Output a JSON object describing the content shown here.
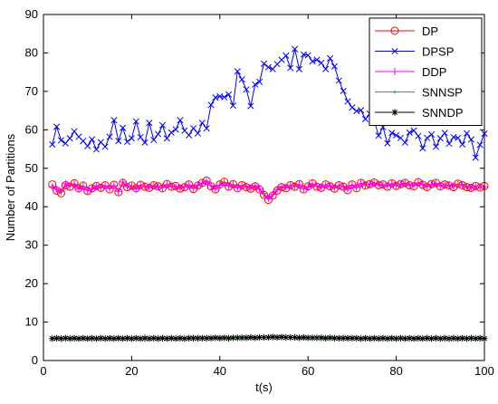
{
  "chart_data": {
    "type": "line",
    "title": "",
    "xlabel": "t(s)",
    "ylabel": "Number of Partitions",
    "xlim": [
      0,
      100
    ],
    "ylim": [
      0,
      90
    ],
    "x_ticks": [
      0,
      20,
      40,
      60,
      80,
      100
    ],
    "y_ticks": [
      0,
      10,
      20,
      30,
      40,
      50,
      60,
      70,
      80,
      90
    ],
    "grid": false,
    "legend_position": "top-right",
    "x": [
      2,
      3,
      4,
      5,
      6,
      7,
      8,
      9,
      10,
      11,
      12,
      13,
      14,
      15,
      16,
      17,
      18,
      19,
      20,
      21,
      22,
      23,
      24,
      25,
      26,
      27,
      28,
      29,
      30,
      31,
      32,
      33,
      34,
      35,
      36,
      37,
      38,
      39,
      40,
      41,
      42,
      43,
      44,
      45,
      46,
      47,
      48,
      49,
      50,
      51,
      52,
      53,
      54,
      55,
      56,
      57,
      58,
      59,
      60,
      61,
      62,
      63,
      64,
      65,
      66,
      67,
      68,
      69,
      70,
      71,
      72,
      73,
      74,
      75,
      76,
      77,
      78,
      79,
      80,
      81,
      82,
      83,
      84,
      85,
      86,
      87,
      88,
      89,
      90,
      91,
      92,
      93,
      94,
      95,
      96,
      97,
      98,
      99,
      100
    ],
    "series": [
      {
        "name": "DP",
        "color": "#ff0000",
        "marker": "circle",
        "values": [
          45.8,
          44.2,
          43.5,
          45.6,
          45.2,
          46.1,
          44.8,
          45.5,
          44.1,
          44.8,
          45.4,
          44.9,
          45.6,
          44.5,
          45.7,
          43.8,
          46.2,
          45.1,
          45.5,
          44.8,
          45.7,
          45.2,
          44.9,
          45.6,
          45.3,
          44.8,
          45.9,
          45.2,
          45.4,
          44.7,
          45.1,
          45.8,
          44.6,
          45.5,
          46.2,
          46.8,
          45.3,
          44.5,
          45.8,
          46.5,
          45.2,
          45.9,
          44.8,
          45.6,
          45.1,
          44.7,
          45.3,
          44.5,
          43.1,
          41.8,
          42.9,
          44.2,
          45.1,
          44.8,
          45.6,
          45.2,
          45.9,
          44.5,
          45.3,
          46.1,
          45.2,
          44.9,
          45.8,
          45.3,
          44.7,
          45.6,
          45.2,
          44.3,
          45.8,
          44.8,
          46.2,
          45.5,
          45.9,
          46.3,
          45.6,
          45.8,
          45.2,
          46.1,
          45.4,
          45.9,
          46.2,
          45.6,
          45.3,
          46.4,
          45.7,
          45.1,
          45.9,
          46.2,
          45.3,
          45.8,
          45.5,
          45.1,
          46.0,
          45.6,
          45.1,
          44.9,
          45.4,
          45.0,
          45.4
        ]
      },
      {
        "name": "DPSP",
        "color": "#0000ff",
        "marker": "x",
        "values": [
          56.2,
          60.8,
          57.3,
          56.5,
          57.8,
          59.6,
          58.2,
          57.1,
          55.8,
          57.5,
          54.9,
          56.8,
          55.6,
          58.2,
          62.5,
          57.1,
          60.5,
          56.9,
          57.8,
          62.2,
          58.1,
          56.7,
          61.8,
          57.4,
          58.9,
          61.2,
          57.8,
          59.3,
          60.1,
          62.5,
          59.8,
          58.6,
          60.4,
          59.1,
          61.8,
          60.4,
          66.5,
          68.4,
          68.7,
          68.5,
          69.2,
          66.3,
          75.2,
          73.1,
          70.5,
          66.2,
          71.8,
          72.5,
          77.2,
          76.3,
          75.8,
          77.1,
          78.2,
          79.3,
          76.1,
          81.0,
          75.8,
          79.6,
          79.4,
          77.8,
          78.2,
          77.4,
          75.8,
          78.6,
          76.5,
          72.8,
          70.1,
          67.4,
          65.8,
          64.9,
          65.1,
          62.8,
          64.2,
          62.4,
          58.5,
          60.7,
          56.5,
          59.2,
          58.6,
          57.9,
          56.7,
          59.3,
          59.8,
          58.4,
          55.2,
          57.9,
          58.8,
          55.6,
          57.8,
          59.2,
          56.4,
          58.1,
          57.9,
          56.2,
          59.1,
          57.5,
          52.8,
          56.1,
          59.0
        ]
      },
      {
        "name": "DDP",
        "color": "#ff00ff",
        "marker": "plus",
        "values": [
          45.2,
          44.6,
          44.0,
          46.0,
          45.4,
          45.8,
          44.6,
          45.3,
          44.3,
          44.6,
          45.2,
          45.1,
          45.4,
          44.8,
          45.5,
          44.0,
          46.4,
          45.3,
          45.3,
          44.6,
          45.5,
          45.4,
          45.1,
          45.4,
          45.1,
          45.0,
          45.7,
          45.4,
          45.2,
          44.9,
          45.3,
          45.6,
          44.8,
          45.7,
          46.0,
          46.5,
          45.5,
          44.7,
          45.6,
          46.3,
          45.4,
          45.7,
          45.0,
          45.4,
          45.3,
          44.9,
          45.5,
          44.7,
          43.4,
          42.2,
          43.2,
          44.5,
          45.3,
          45.0,
          45.4,
          45.4,
          45.7,
          44.7,
          45.1,
          45.9,
          45.4,
          45.1,
          45.6,
          45.5,
          44.9,
          45.4,
          45.4,
          44.6,
          45.6,
          45.0,
          46.0,
          45.7,
          45.7,
          46.1,
          45.8,
          45.6,
          45.4,
          45.9,
          45.6,
          45.7,
          46.0,
          45.8,
          45.5,
          46.2,
          45.9,
          45.3,
          45.7,
          46.0,
          45.5,
          45.6,
          45.7,
          45.3,
          45.8,
          45.8,
          45.3,
          45.1,
          45.2,
          45.2,
          45.2
        ]
      },
      {
        "name": "SNNSP",
        "color": "#00cc00",
        "marker": "dot",
        "values": [
          5.8,
          5.9,
          5.8,
          5.9,
          5.8,
          5.9,
          5.8,
          5.9,
          5.8,
          5.9,
          5.8,
          5.9,
          5.8,
          5.9,
          5.8,
          5.9,
          5.8,
          5.9,
          5.8,
          5.9,
          5.8,
          5.9,
          5.8,
          5.9,
          5.8,
          5.9,
          5.8,
          5.9,
          5.8,
          5.9,
          5.8,
          5.9,
          5.9,
          5.9,
          5.9,
          5.9,
          5.9,
          6.0,
          5.9,
          6.0,
          5.9,
          6.0,
          6.0,
          6.0,
          6.0,
          6.1,
          6.0,
          6.1,
          6.1,
          6.1,
          6.2,
          6.1,
          6.2,
          6.1,
          6.1,
          6.1,
          6.0,
          6.1,
          6.0,
          6.0,
          6.0,
          6.0,
          5.9,
          6.0,
          5.9,
          5.9,
          5.9,
          5.9,
          5.9,
          5.9,
          5.8,
          5.9,
          5.8,
          5.9,
          5.8,
          5.9,
          5.8,
          5.9,
          5.8,
          5.9,
          5.8,
          5.9,
          5.8,
          5.9,
          5.8,
          5.9,
          5.8,
          5.9,
          5.8,
          5.9,
          5.8,
          5.9,
          5.8,
          5.9,
          5.8,
          5.9,
          5.8,
          5.9,
          5.8
        ]
      },
      {
        "name": "SNNDP",
        "color": "#000000",
        "marker": "asterisk",
        "values": [
          5.7,
          5.8,
          5.7,
          5.8,
          5.7,
          5.8,
          5.7,
          5.8,
          5.7,
          5.8,
          5.7,
          5.8,
          5.7,
          5.8,
          5.7,
          5.8,
          5.7,
          5.8,
          5.7,
          5.8,
          5.7,
          5.8,
          5.7,
          5.8,
          5.7,
          5.8,
          5.7,
          5.8,
          5.7,
          5.8,
          5.7,
          5.8,
          5.8,
          5.8,
          5.8,
          5.8,
          5.8,
          5.9,
          5.8,
          5.9,
          5.8,
          5.9,
          5.9,
          5.9,
          5.9,
          6.0,
          5.9,
          6.0,
          6.0,
          6.0,
          6.1,
          6.0,
          6.1,
          6.0,
          6.0,
          6.0,
          5.9,
          6.0,
          5.9,
          5.9,
          5.9,
          5.9,
          5.8,
          5.9,
          5.8,
          5.8,
          5.8,
          5.8,
          5.8,
          5.8,
          5.7,
          5.8,
          5.7,
          5.8,
          5.7,
          5.8,
          5.7,
          5.8,
          5.7,
          5.8,
          5.7,
          5.8,
          5.7,
          5.8,
          5.7,
          5.8,
          5.7,
          5.8,
          5.7,
          5.8,
          5.7,
          5.8,
          5.7,
          5.8,
          5.7,
          5.8,
          5.7,
          5.8,
          5.7
        ]
      }
    ]
  }
}
